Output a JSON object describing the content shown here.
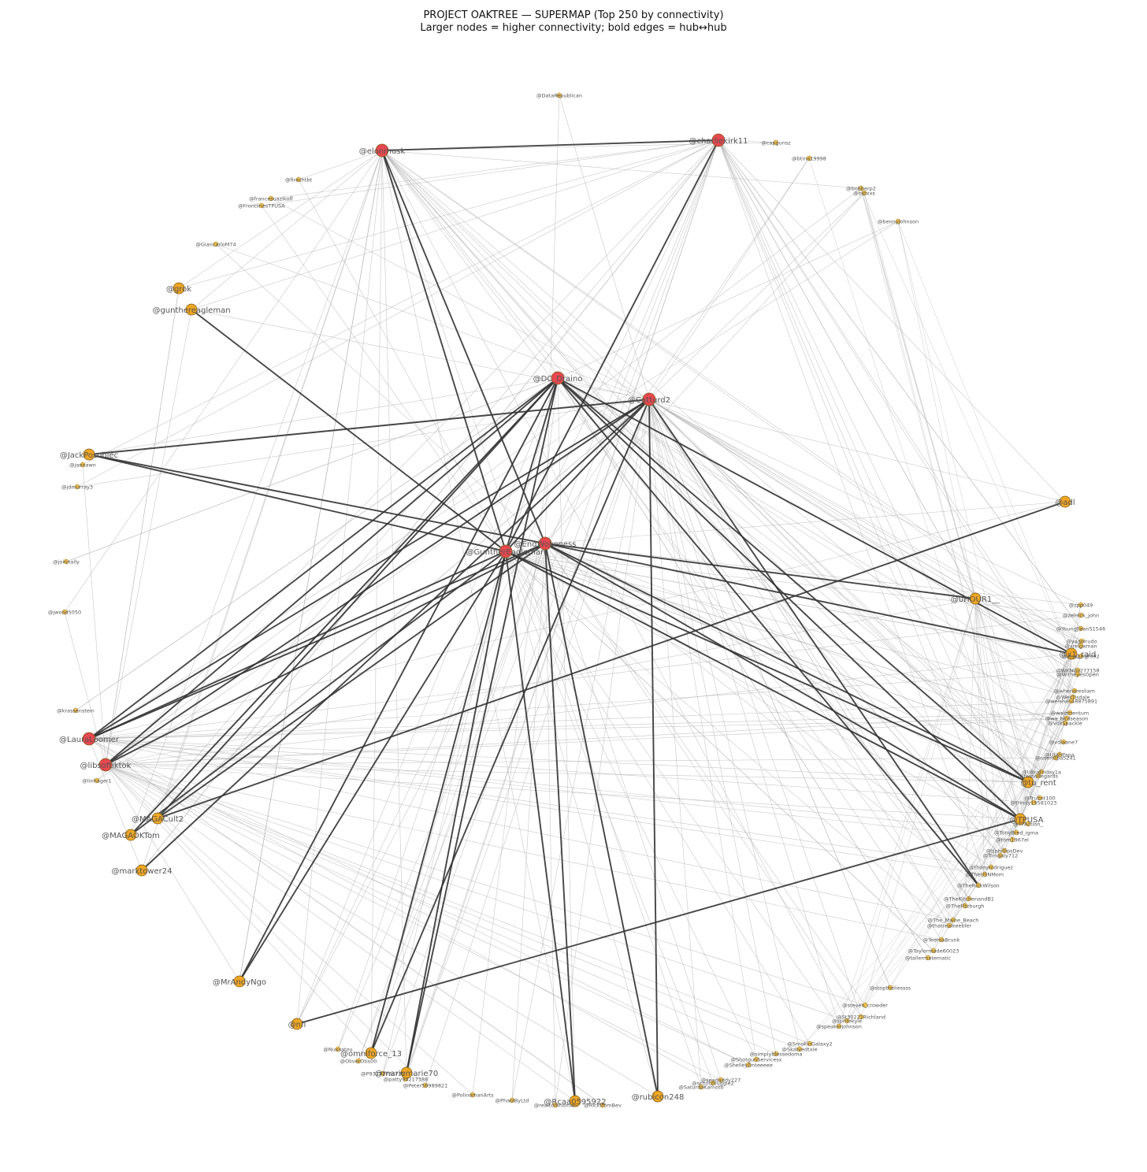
{
  "title": "PROJECT OAKTREE — SUPERMAP (Top 250 by connectivity)",
  "subtitle": "Larger nodes = higher connectivity; bold edges = hub↔hub",
  "colors": {
    "hub": "#e8474f",
    "node": "#f0a623",
    "minor": "#f2c14e",
    "hub_edge": "#333333",
    "edge": "#b5b5b5"
  },
  "nodes": [
    {
      "id": "DataRepublican",
      "label": "@DataRepublican",
      "kind": "minor"
    },
    {
      "id": "elonmusk",
      "label": "@elonmusk",
      "kind": "hub"
    },
    {
      "id": "charliekirk11",
      "label": "@charliekirk11",
      "kind": "hub"
    },
    {
      "id": "capgunsz",
      "label": "@capgunsz",
      "kind": "minor"
    },
    {
      "id": "btina19998",
      "label": "@btina19998",
      "kind": "minor"
    },
    {
      "id": "bobberp2",
      "label": "@bobberp2",
      "kind": "minor"
    },
    {
      "id": "bstxxs",
      "label": "@bstxxs",
      "kind": "minor"
    },
    {
      "id": "bennyjohnson",
      "label": "@bennyjohnson",
      "kind": "minor"
    },
    {
      "id": "firechtbt",
      "label": "@firechtbt",
      "kind": "minor"
    },
    {
      "id": "francesuazikoff",
      "label": "@francesuazikoff",
      "kind": "minor"
    },
    {
      "id": "FrontlinesTPUSA",
      "label": "@FrontlinesTPUSA",
      "kind": "minor"
    },
    {
      "id": "GiancarloM74",
      "label": "@GiancarloM74",
      "kind": "minor"
    },
    {
      "id": "grok",
      "label": "@grok",
      "kind": "node"
    },
    {
      "id": "gunthereagleman",
      "label": "@gunthereagleman",
      "kind": "node"
    },
    {
      "id": "DC_Draino",
      "label": "@DC_Draino",
      "kind": "hub"
    },
    {
      "id": "Catturd2",
      "label": "@Catturd2",
      "kind": "hub"
    },
    {
      "id": "JackPosobiec",
      "label": "@JackPosobiec",
      "kind": "node"
    },
    {
      "id": "jaonawn",
      "label": "@jaonawn",
      "kind": "minor"
    },
    {
      "id": "jdmurray3",
      "label": "@jdmurray3",
      "kind": "minor"
    },
    {
      "id": "adl",
      "label": "@adl",
      "kind": "node"
    },
    {
      "id": "EndWokeness",
      "label": "@EndWokeness",
      "kind": "hub"
    },
    {
      "id": "GuntherEagleman",
      "label": "@GuntherEagleman",
      "kind": "hub"
    },
    {
      "id": "joinnally",
      "label": "@joinnally",
      "kind": "minor"
    },
    {
      "id": "jwood5050",
      "label": "@jwood5050",
      "kind": "minor"
    },
    {
      "id": "0HOUR1",
      "label": "@0HOUR1__",
      "kind": "node"
    },
    {
      "id": "zpp049",
      "label": "@zpp049",
      "kind": "minor"
    },
    {
      "id": "zelnick_john",
      "label": "@zelnick_john",
      "kind": "minor"
    },
    {
      "id": "YoungJlean51546",
      "label": "@YoungJlean51546",
      "kind": "minor"
    },
    {
      "id": "yagolrudo",
      "label": "@yagolrudo",
      "kind": "minor"
    },
    {
      "id": "xreigaman",
      "label": "@xreigaman",
      "kind": "minor"
    },
    {
      "id": "x1_raid",
      "label": "@x1_raid",
      "kind": "node"
    },
    {
      "id": "wsphsight92",
      "label": "@wsphsight92",
      "kind": "minor"
    },
    {
      "id": "WKNGs277158",
      "label": "@WKNGs277158",
      "kind": "minor"
    },
    {
      "id": "WitheyesOpen",
      "label": "@WitheyesOpen",
      "kind": "minor"
    },
    {
      "id": "wheneresliam",
      "label": "@wheneresliam",
      "kind": "minor"
    },
    {
      "id": "WesTisdale",
      "label": "@WesTisdale",
      "kind": "minor"
    },
    {
      "id": "weishan48875891",
      "label": "@weishan48875891",
      "kind": "minor"
    },
    {
      "id": "walzmentum",
      "label": "@walzmentum",
      "kind": "minor"
    },
    {
      "id": "wa_birdseason",
      "label": "@wa_birdseason",
      "kind": "minor"
    },
    {
      "id": "VoxSpackle",
      "label": "@VoxSpackle",
      "kind": "minor"
    },
    {
      "id": "vdiaane7",
      "label": "@vdiaane7",
      "kind": "minor"
    },
    {
      "id": "krassenstein",
      "label": "@krassenstein",
      "kind": "minor"
    },
    {
      "id": "LauraLoomer",
      "label": "@LauraLoomer",
      "kind": "hub"
    },
    {
      "id": "libsoftiktok",
      "label": "@libsoftiktok",
      "kind": "hub"
    },
    {
      "id": "linhager1",
      "label": "@linhager1",
      "kind": "minor"
    },
    {
      "id": "UtahPapa",
      "label": "@UtahPapa",
      "kind": "minor"
    },
    {
      "id": "userofpa5241",
      "label": "@userofpa5241",
      "kind": "minor"
    },
    {
      "id": "UltraFriday1a",
      "label": "@UltraFriday1a",
      "kind": "minor"
    },
    {
      "id": "twinsRegards",
      "label": "@twinsRegards",
      "kind": "minor"
    },
    {
      "id": "tu_rent",
      "label": "@tu_rent",
      "kind": "node"
    },
    {
      "id": "Trubnt100",
      "label": "@Trubnt100",
      "kind": "minor"
    },
    {
      "id": "trinity19581023",
      "label": "@trinity19581023",
      "kind": "minor"
    },
    {
      "id": "TPUSA",
      "label": "@TPUSA",
      "kind": "node"
    },
    {
      "id": "TPAction",
      "label": "@TPAction_",
      "kind": "minor"
    },
    {
      "id": "TonyBred_igma",
      "label": "@TonyBred_igma",
      "kind": "minor"
    },
    {
      "id": "tom1967el",
      "label": "@tom1967el",
      "kind": "minor"
    },
    {
      "id": "tjphillipsDev",
      "label": "@tjphillipsDev",
      "kind": "minor"
    },
    {
      "id": "Timgaly712",
      "label": "@Timgaly712",
      "kind": "minor"
    },
    {
      "id": "thonyrodriguez",
      "label": "@thonyrodriguez",
      "kind": "minor"
    },
    {
      "id": "TheUSNMom",
      "label": "@TheUSNMom",
      "kind": "minor"
    },
    {
      "id": "MAGACult2",
      "label": "@MAGACult2",
      "kind": "node"
    },
    {
      "id": "MAGAOKTom",
      "label": "@MAGAOKTom",
      "kind": "node"
    },
    {
      "id": "marktower24",
      "label": "@marktower24",
      "kind": "node"
    },
    {
      "id": "TheRickWilson",
      "label": "@TheRickWilson",
      "kind": "minor"
    },
    {
      "id": "TheKitchenandB1",
      "label": "@TheKitchenandB1",
      "kind": "minor"
    },
    {
      "id": "TheFitzburgh",
      "label": "@TheFitzburgh",
      "kind": "minor"
    },
    {
      "id": "The_Maine_Beach",
      "label": "@The_Maine_Beach",
      "kind": "minor"
    },
    {
      "id": "thatrealkeebler",
      "label": "@thatrealkeebler",
      "kind": "minor"
    },
    {
      "id": "TeemaBrunk",
      "label": "@TeemaBrunk",
      "kind": "minor"
    },
    {
      "id": "Taylormade60023",
      "label": "@Taylormade60023",
      "kind": "minor"
    },
    {
      "id": "tallermatematic",
      "label": "@tallermatematic",
      "kind": "minor"
    },
    {
      "id": "MrAndyNgo",
      "label": "@MrAndyNgo",
      "kind": "node"
    },
    {
      "id": "nfl",
      "label": "@nfl",
      "kind": "node"
    },
    {
      "id": "stoptheliessss",
      "label": "@stoptheliessss",
      "kind": "minor"
    },
    {
      "id": "steven_crowder",
      "label": "@steven_crowder",
      "kind": "minor"
    },
    {
      "id": "St30221Richland",
      "label": "@St30221Richland",
      "kind": "minor"
    },
    {
      "id": "spritekyle",
      "label": "@spritekyle",
      "kind": "minor"
    },
    {
      "id": "speakerjohnson",
      "label": "@speakerjohnson",
      "kind": "minor"
    },
    {
      "id": "SmokinGalaxy2",
      "label": "@SmokinGalaxy2",
      "kind": "minor"
    },
    {
      "id": "Skatvedtxie",
      "label": "@Skatvedtxie",
      "kind": "minor"
    },
    {
      "id": "simplyblessedoma",
      "label": "@simplyblessedoma",
      "kind": "minor"
    },
    {
      "id": "ShotgunServicesx",
      "label": "@ShotgunServicesx",
      "kind": "minor"
    },
    {
      "id": "ShelleyDnteeeee",
      "label": "@ShelleyDnteeeee",
      "kind": "minor"
    },
    {
      "id": "seadaddy227",
      "label": "@seadaddy227",
      "kind": "minor"
    },
    {
      "id": "schiltznuggie2",
      "label": "@schiltznuggie2",
      "kind": "minor"
    },
    {
      "id": "SaturdaKarnoto",
      "label": "@SaturdaKarnoto",
      "kind": "minor"
    },
    {
      "id": "rubicon248",
      "label": "@rubicon248",
      "kind": "node"
    },
    {
      "id": "RickfromBev",
      "label": "@RickfromBev",
      "kind": "minor"
    },
    {
      "id": "realtomhoman",
      "label": "@realtomhoman",
      "kind": "minor"
    },
    {
      "id": "R0595922",
      "label": "@Rcaa0595922",
      "kind": "node"
    },
    {
      "id": "Peter56989821",
      "label": "@Peter56989821",
      "kind": "minor"
    },
    {
      "id": "patty94217388",
      "label": "@patty94217388",
      "kind": "minor"
    },
    {
      "id": "P93272764735",
      "label": "@P93272764735",
      "kind": "minor"
    },
    {
      "id": "OliverOtis00",
      "label": "@OliverOtis00",
      "kind": "minor"
    },
    {
      "id": "omniforce_13",
      "label": "@omniforce_13",
      "kind": "node"
    },
    {
      "id": "mariemarie70",
      "label": "@mariemarie70",
      "kind": "node"
    },
    {
      "id": "Nuxsatou",
      "label": "@Nuxsatou",
      "kind": "minor"
    },
    {
      "id": "PolinomanArts",
      "label": "@PolinomanArts",
      "kind": "minor"
    },
    {
      "id": "PhaolByLtd",
      "label": "@PhaolByLtd",
      "kind": "minor"
    }
  ],
  "hub_edges": [
    [
      "elonmusk",
      "charliekirk11"
    ],
    [
      "elonmusk",
      "GuntherEagleman"
    ],
    [
      "elonmusk",
      "EndWokeness"
    ],
    [
      "charliekirk11",
      "GuntherEagleman"
    ],
    [
      "gunthereagleman",
      "GuntherEagleman"
    ],
    [
      "DC_Draino",
      "LauraLoomer"
    ],
    [
      "DC_Draino",
      "libsoftiktok"
    ],
    [
      "DC_Draino",
      "MAGACult2"
    ],
    [
      "DC_Draino",
      "MAGAOKTom"
    ],
    [
      "DC_Draino",
      "MrAndyNgo"
    ],
    [
      "DC_Draino",
      "mariemarie70"
    ],
    [
      "DC_Draino",
      "TPUSA"
    ],
    [
      "DC_Draino",
      "x1_raid"
    ],
    [
      "DC_Draino",
      "tu_rent"
    ],
    [
      "Catturd2",
      "JackPosobiec"
    ],
    [
      "Catturd2",
      "LauraLoomer"
    ],
    [
      "Catturd2",
      "libsoftiktok"
    ],
    [
      "Catturd2",
      "marktower24"
    ],
    [
      "Catturd2",
      "rubicon248"
    ],
    [
      "Catturd2",
      "TheRickWilson"
    ],
    [
      "Catturd2",
      "omniforce_13"
    ],
    [
      "JackPosobiec",
      "EndWokeness"
    ],
    [
      "JackPosobiec",
      "GuntherEagleman"
    ],
    [
      "adl",
      "MAGACult2"
    ],
    [
      "TPUSA",
      "nfl"
    ],
    [
      "EndWokeness",
      "libsoftiktok"
    ],
    [
      "EndWokeness",
      "LauraLoomer"
    ],
    [
      "EndWokeness",
      "R0595922"
    ],
    [
      "EndWokeness",
      "rubicon248"
    ],
    [
      "EndWokeness",
      "0HOUR1"
    ],
    [
      "EndWokeness",
      "x1_raid"
    ],
    [
      "EndWokeness",
      "tu_rent"
    ],
    [
      "EndWokeness",
      "TPUSA"
    ],
    [
      "GuntherEagleman",
      "MAGAOKTom"
    ],
    [
      "GuntherEagleman",
      "MrAndyNgo"
    ],
    [
      "GuntherEagleman",
      "omniforce_13"
    ],
    [
      "GuntherEagleman",
      "mariemarie70"
    ],
    [
      "GuntherEagleman",
      "TPUSA"
    ],
    [
      "GuntherEagleman",
      "tu_rent"
    ],
    [
      "GuntherEagleman",
      "R0595922"
    ],
    [
      "GuntherEagleman",
      "LauraLoomer"
    ],
    [
      "DC_Draino",
      "GuntherEagleman"
    ],
    [
      "Catturd2",
      "GuntherEagleman"
    ],
    [
      "DC_Draino",
      "TheRickWilson"
    ],
    [
      "EndWokeness",
      "MAGACult2"
    ]
  ]
}
